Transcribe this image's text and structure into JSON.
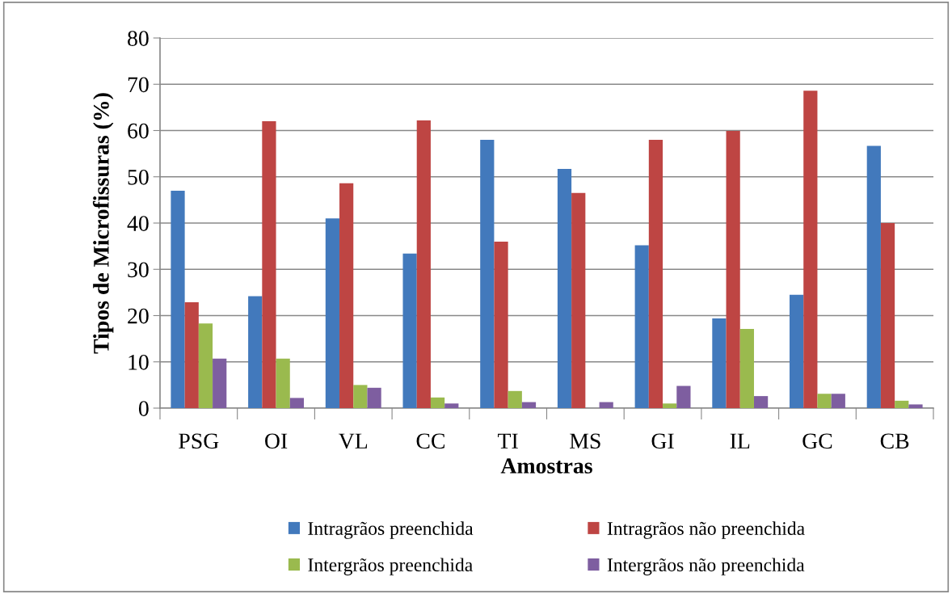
{
  "chart_data": {
    "type": "bar",
    "xlabel": "Amostras",
    "ylabel": "Tipos de Microfissuras (%)",
    "categories": [
      "PSG",
      "OI",
      "VL",
      "CC",
      "TI",
      "MS",
      "GI",
      "IL",
      "GC",
      "CB"
    ],
    "series": [
      {
        "name": "Intragrãos preenchida",
        "color": "#4279bc",
        "values": [
          47.0,
          24.2,
          41.0,
          33.4,
          58.0,
          51.7,
          35.2,
          19.4,
          24.5,
          56.7
        ]
      },
      {
        "name": "Intragrãos não preenchida",
        "color": "#be4543",
        "values": [
          22.9,
          62.0,
          48.6,
          62.2,
          36.0,
          46.5,
          58.0,
          59.9,
          68.6,
          40.0
        ]
      },
      {
        "name": "Intergrãos preenchida",
        "color": "#9aba4e",
        "values": [
          18.3,
          10.7,
          5.0,
          2.3,
          3.7,
          null,
          1.0,
          17.1,
          3.1,
          1.6
        ]
      },
      {
        "name": "Intergrãos não preenchida",
        "color": "#7e5ea0",
        "values": [
          10.7,
          2.2,
          4.4,
          1.0,
          1.3,
          1.3,
          4.8,
          2.6,
          3.1,
          0.8
        ]
      }
    ],
    "ylim": [
      0,
      80
    ],
    "yticks": [
      0,
      10,
      20,
      30,
      40,
      50,
      60,
      70,
      80
    ],
    "grid": "y",
    "legend": "bottom"
  }
}
